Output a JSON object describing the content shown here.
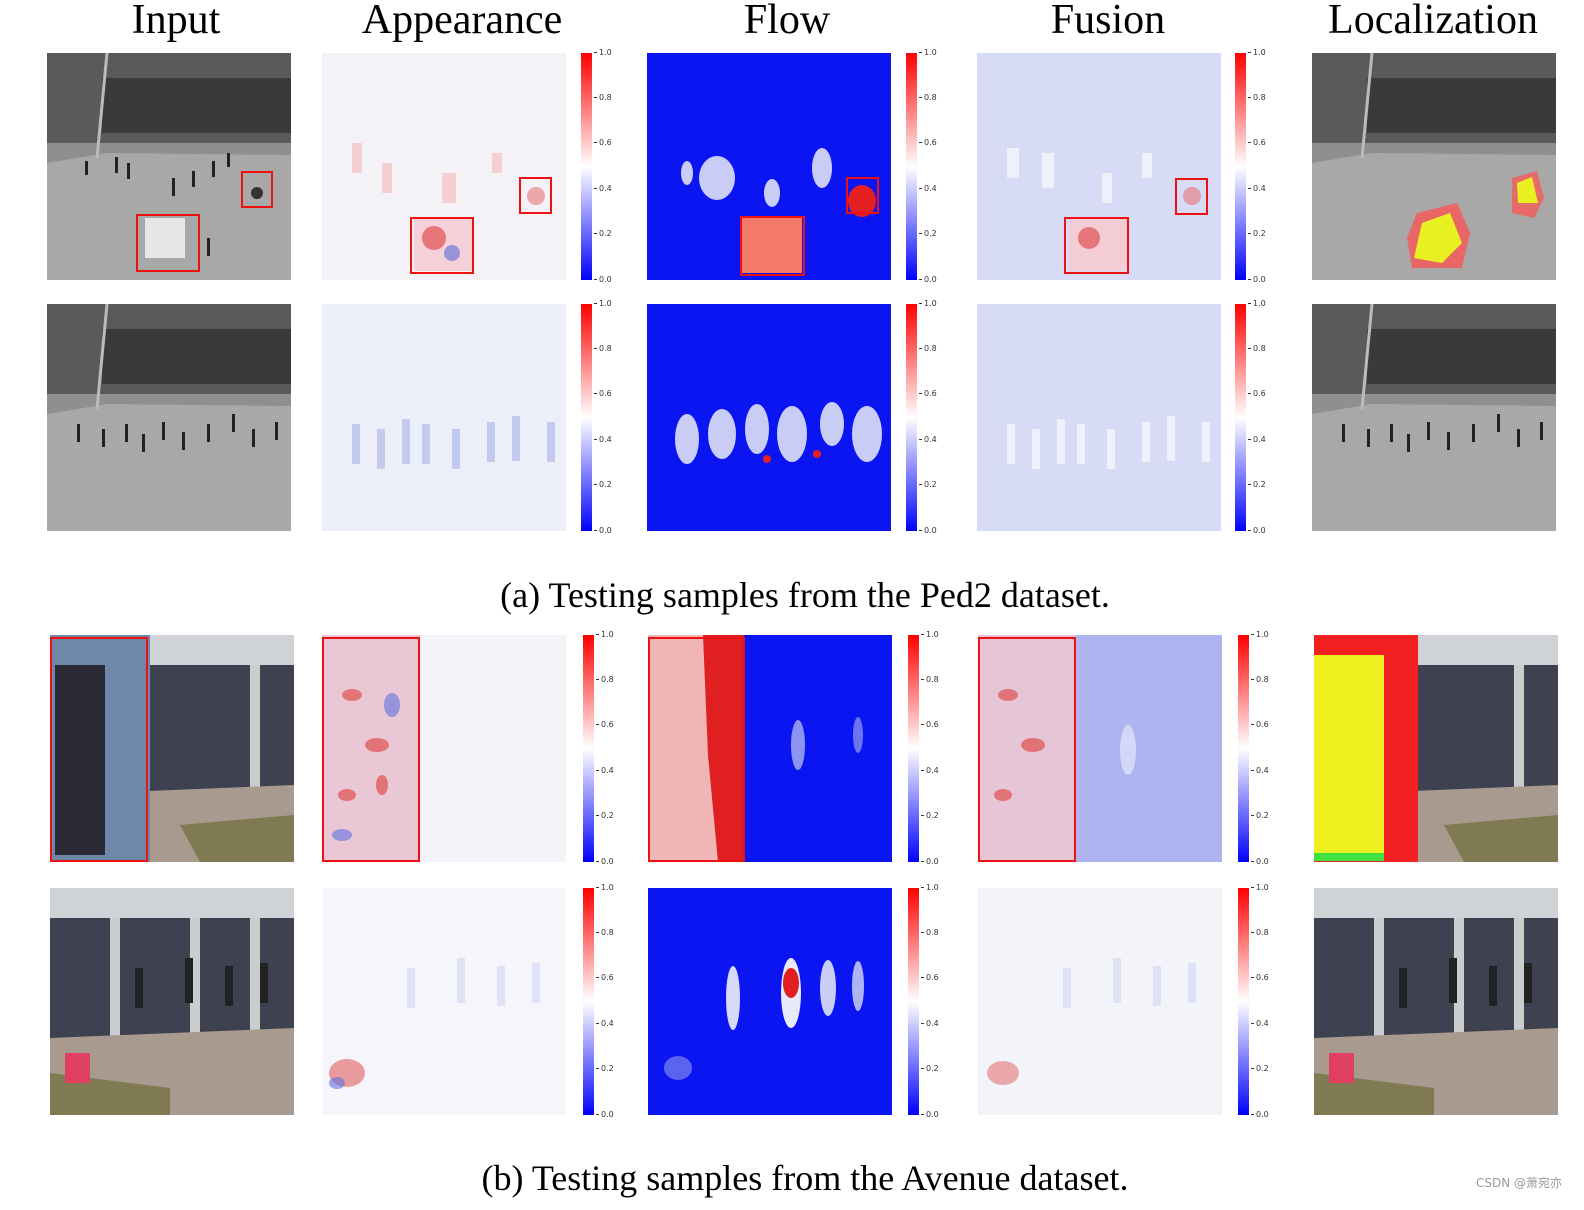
{
  "columns": [
    "Input",
    "Appearance",
    "Flow",
    "Fusion",
    "Localization"
  ],
  "colorbar_ticks": [
    "1.0",
    "0.8",
    "0.6",
    "0.4",
    "0.2",
    "0.0"
  ],
  "colors": {
    "anomaly_box": "#e11111",
    "heat_high": "#ff0000",
    "heat_mid": "#ffffff",
    "heat_low": "#0000ff"
  },
  "sections": [
    {
      "caption": "(a) Testing samples from the Ped2 dataset."
    },
    {
      "caption": "(b) Testing samples from the Avenue dataset."
    }
  ],
  "watermark": "CSDN @萧宛亦"
}
